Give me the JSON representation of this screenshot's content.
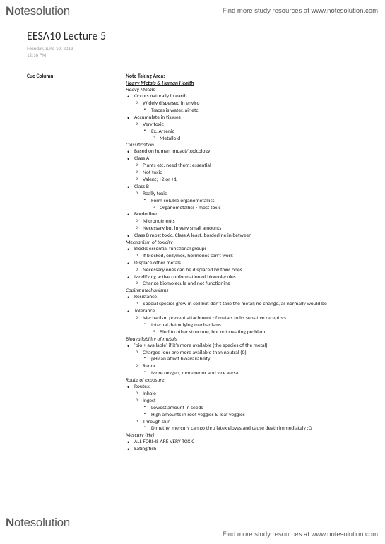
{
  "branding": {
    "logo_bold": "N",
    "logo_rest": "otesolution",
    "tagline": "Find more study resources at www.notesolution.com"
  },
  "doc": {
    "title": "EESA10 Lecture 5",
    "date": "Monday, June 10, 2013",
    "time": "12:16 PM"
  },
  "cue": {
    "label": "Cue Column:"
  },
  "notes": {
    "area_label": "Note-Taking Area:",
    "main_heading": "Heavy Metals & Human Health",
    "sections": [
      {
        "heading": "Heavy Metals",
        "items": [
          {
            "t": "Occurs naturally in earth",
            "c": [
              {
                "t": "Widely dispersed in enviro",
                "c": [
                  {
                    "t": "Traces is water, air etc."
                  }
                ]
              }
            ]
          },
          {
            "t": "Accumulate in tissues",
            "c": [
              {
                "t": "Very toxic",
                "c": [
                  {
                    "t": "Ex. Arsenic",
                    "c": [
                      {
                        "t": "Metalloid"
                      }
                    ]
                  }
                ]
              }
            ]
          }
        ]
      },
      {
        "heading": "Classification",
        "items": [
          {
            "t": "Based on human impact/toxicology"
          },
          {
            "t": "Class A",
            "c": [
              {
                "t": "Plants etc. need them; essential"
              },
              {
                "t": "Not toxic"
              },
              {
                "t": "Valent; +2 or +1"
              }
            ]
          },
          {
            "t": "Class B",
            "c": [
              {
                "t": "Really toxic",
                "c": [
                  {
                    "t": "Form soluble organometallics",
                    "c": [
                      {
                        "t": "Organometallics - most toxic"
                      }
                    ]
                  }
                ]
              }
            ]
          },
          {
            "t": "Borderline",
            "c": [
              {
                "t": "Micronutrients"
              },
              {
                "t": "Necessary but in very small amounts"
              }
            ]
          },
          {
            "t": "Class B most toxic, Class A least, borderline in between"
          }
        ]
      },
      {
        "heading": "Mechanism of toxicity",
        "items": [
          {
            "t": "Blocks essential functional groups",
            "c": [
              {
                "t": "If blocked, enzymes, hormones can't work"
              }
            ]
          },
          {
            "t": "Displace other metals",
            "c": [
              {
                "t": "Necessary ones can be displaced by toxic ones"
              }
            ]
          },
          {
            "t": "Modifying active conformation of biomolecules",
            "c": [
              {
                "t": "Change biomolecule and not functioning"
              }
            ]
          }
        ]
      },
      {
        "heading": "Coping mechanisms",
        "items": [
          {
            "t": "Resistance",
            "c": [
              {
                "t": "Special species grow in soil but don't take the metal; no change, as normally would be"
              }
            ]
          },
          {
            "t": "Tolerance",
            "c": [
              {
                "t": "Mechanism prevent attachment of metals to its sensitive receptors",
                "c": [
                  {
                    "t": "Internal detoxifying mechanisms",
                    "c": [
                      {
                        "t": "Bind to other structure, but not creating problem"
                      }
                    ]
                  }
                ]
              }
            ]
          }
        ]
      },
      {
        "heading": "Bioavailability of metals",
        "items": [
          {
            "t": "'bio + available' if it's more available (the species of the metal)",
            "c": [
              {
                "t": "Charged ions are more available than neutral (0)",
                "c": [
                  {
                    "t": "pH can affect bioavailability"
                  }
                ]
              },
              {
                "t": "Redox",
                "c": [
                  {
                    "t": "More oxygen, more redox and vice versa"
                  }
                ]
              }
            ]
          }
        ]
      },
      {
        "heading": "Route of exposure",
        "items": [
          {
            "t": "Routes:",
            "c": [
              {
                "t": "Inhale"
              },
              {
                "t": "Ingest",
                "c": [
                  {
                    "t": "Lowest amount in seeds"
                  },
                  {
                    "t": "High amounts in root veggies & leaf veggies"
                  }
                ]
              },
              {
                "t": "Through skin",
                "c": [
                  {
                    "t": "Dimethyl mercury can go thru latex gloves and cause death immediately :O"
                  }
                ]
              }
            ]
          }
        ]
      },
      {
        "heading": "Mercury (Hg)",
        "items": [
          {
            "t": "ALL FORMS ARE VERY TOXIC"
          },
          {
            "t": "Eating fish"
          }
        ]
      }
    ]
  }
}
